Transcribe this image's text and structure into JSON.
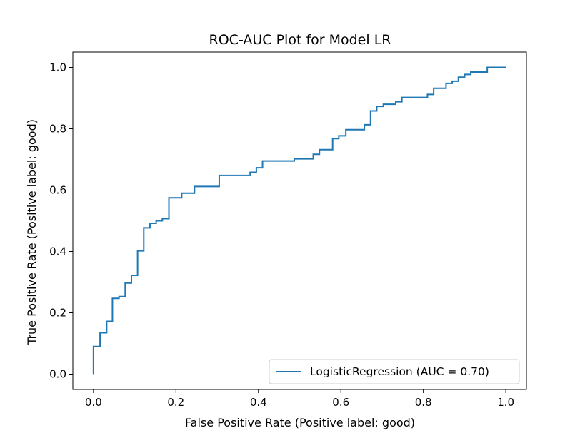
{
  "chart_data": {
    "type": "line",
    "title": "ROC-AUC Plot for Model LR",
    "xlabel": "False Positive Rate (Positive label: good)",
    "ylabel": "True Positive Rate (Positive label: good)",
    "xlim": [
      -0.05,
      1.05
    ],
    "ylim": [
      -0.05,
      1.05
    ],
    "xticks": [
      0.0,
      0.2,
      0.4,
      0.6,
      0.8,
      1.0
    ],
    "yticks": [
      0.0,
      0.2,
      0.4,
      0.6,
      0.8,
      1.0
    ],
    "xtick_labels": [
      "0.0",
      "0.2",
      "0.4",
      "0.6",
      "0.8",
      "1.0"
    ],
    "ytick_labels": [
      "0.0",
      "0.2",
      "0.4",
      "0.6",
      "0.8",
      "1.0"
    ],
    "grid": false,
    "legend_position": "lower-right",
    "series": [
      {
        "name": "LogisticRegression (AUC = 0.70)",
        "color": "#1f77b4",
        "points": [
          [
            0.0,
            0.0
          ],
          [
            0.0,
            0.09
          ],
          [
            0.016,
            0.09
          ],
          [
            0.016,
            0.135
          ],
          [
            0.032,
            0.135
          ],
          [
            0.032,
            0.172
          ],
          [
            0.046,
            0.172
          ],
          [
            0.046,
            0.247
          ],
          [
            0.062,
            0.247
          ],
          [
            0.062,
            0.253
          ],
          [
            0.077,
            0.253
          ],
          [
            0.077,
            0.297
          ],
          [
            0.092,
            0.297
          ],
          [
            0.092,
            0.322
          ],
          [
            0.107,
            0.322
          ],
          [
            0.107,
            0.402
          ],
          [
            0.122,
            0.402
          ],
          [
            0.122,
            0.477
          ],
          [
            0.137,
            0.477
          ],
          [
            0.137,
            0.492
          ],
          [
            0.152,
            0.492
          ],
          [
            0.152,
            0.5
          ],
          [
            0.167,
            0.5
          ],
          [
            0.167,
            0.507
          ],
          [
            0.183,
            0.507
          ],
          [
            0.183,
            0.575
          ],
          [
            0.214,
            0.575
          ],
          [
            0.214,
            0.59
          ],
          [
            0.245,
            0.59
          ],
          [
            0.245,
            0.612
          ],
          [
            0.305,
            0.612
          ],
          [
            0.305,
            0.648
          ],
          [
            0.38,
            0.648
          ],
          [
            0.38,
            0.658
          ],
          [
            0.395,
            0.658
          ],
          [
            0.395,
            0.673
          ],
          [
            0.41,
            0.673
          ],
          [
            0.41,
            0.695
          ],
          [
            0.487,
            0.695
          ],
          [
            0.487,
            0.702
          ],
          [
            0.533,
            0.702
          ],
          [
            0.533,
            0.717
          ],
          [
            0.548,
            0.717
          ],
          [
            0.548,
            0.732
          ],
          [
            0.58,
            0.732
          ],
          [
            0.58,
            0.768
          ],
          [
            0.595,
            0.768
          ],
          [
            0.595,
            0.777
          ],
          [
            0.612,
            0.777
          ],
          [
            0.612,
            0.797
          ],
          [
            0.657,
            0.797
          ],
          [
            0.657,
            0.813
          ],
          [
            0.672,
            0.813
          ],
          [
            0.672,
            0.858
          ],
          [
            0.687,
            0.858
          ],
          [
            0.687,
            0.873
          ],
          [
            0.703,
            0.873
          ],
          [
            0.703,
            0.88
          ],
          [
            0.733,
            0.88
          ],
          [
            0.733,
            0.888
          ],
          [
            0.748,
            0.888
          ],
          [
            0.748,
            0.902
          ],
          [
            0.81,
            0.902
          ],
          [
            0.81,
            0.912
          ],
          [
            0.825,
            0.912
          ],
          [
            0.825,
            0.932
          ],
          [
            0.855,
            0.932
          ],
          [
            0.855,
            0.948
          ],
          [
            0.87,
            0.948
          ],
          [
            0.87,
            0.955
          ],
          [
            0.885,
            0.955
          ],
          [
            0.885,
            0.968
          ],
          [
            0.9,
            0.968
          ],
          [
            0.9,
            0.977
          ],
          [
            0.915,
            0.977
          ],
          [
            0.915,
            0.985
          ],
          [
            0.955,
            0.985
          ],
          [
            0.955,
            1.0
          ],
          [
            1.0,
            1.0
          ]
        ]
      }
    ]
  }
}
